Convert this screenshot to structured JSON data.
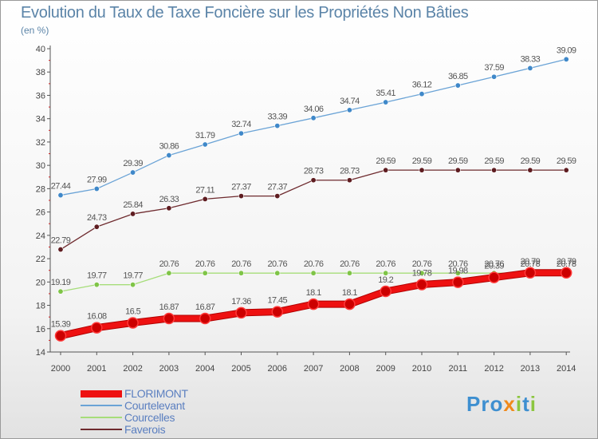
{
  "title": "Evolution du Taux de Taxe Foncière sur les Propriétés Non Bâties",
  "unit_label": "(en %)",
  "logo_text": "Proxiti",
  "chart_data": {
    "type": "line",
    "x": [
      2000,
      2001,
      2002,
      2003,
      2004,
      2005,
      2006,
      2007,
      2008,
      2009,
      2010,
      2011,
      2012,
      2013,
      2014
    ],
    "ylim": [
      14,
      40
    ],
    "yticks": [
      14,
      16,
      18,
      20,
      22,
      24,
      26,
      28,
      30,
      32,
      34,
      36,
      38,
      40
    ],
    "grid": false,
    "legend_position": "bottom-left",
    "series": [
      {
        "name": "Courtelevant",
        "color": "#6aa3d6",
        "point_color": "#3f88c9",
        "width": 1.3,
        "values": [
          27.44,
          27.99,
          29.39,
          30.86,
          31.79,
          32.74,
          33.39,
          34.06,
          34.74,
          35.41,
          36.12,
          36.85,
          37.59,
          38.33,
          39.09
        ]
      },
      {
        "name": "Faverois",
        "color": "#6e2a2e",
        "point_color": "#5e1c20",
        "width": 1.3,
        "values": [
          22.79,
          24.73,
          25.84,
          26.33,
          27.11,
          27.37,
          27.37,
          28.73,
          28.73,
          29.59,
          29.59,
          29.59,
          29.59,
          29.59,
          29.59
        ]
      },
      {
        "name": "Courcelles",
        "color": "#a6dd7a",
        "point_color": "#7fc447",
        "width": 1.3,
        "values": [
          19.19,
          19.77,
          19.77,
          20.76,
          20.76,
          20.76,
          20.76,
          20.76,
          20.76,
          20.76,
          20.76,
          20.76,
          20.76,
          20.78,
          20.78
        ]
      },
      {
        "name": "FLORIMONT",
        "color": "#ee1111",
        "point_color": "#cc0000",
        "width": 7,
        "values": [
          15.39,
          16.08,
          16.5,
          16.87,
          16.87,
          17.36,
          17.45,
          18.1,
          18.1,
          19.2,
          19.78,
          19.98,
          20.39,
          20.79,
          20.79
        ]
      }
    ],
    "legend_order": [
      "FLORIMONT",
      "Courtelevant",
      "Courcelles",
      "Faverois"
    ]
  }
}
